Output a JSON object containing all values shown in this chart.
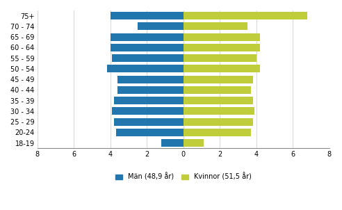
{
  "age_groups": [
    "18-19",
    "20-24",
    "25 - 29",
    "30 - 34",
    "35 - 39",
    "40 - 44",
    "45 - 49",
    "50 - 54",
    "55 - 59",
    "60 - 64",
    "65 - 69",
    "70 - 74",
    "75+"
  ],
  "men_values": [
    -1.2,
    -3.7,
    -3.8,
    -3.9,
    -3.8,
    -3.6,
    -3.6,
    -4.2,
    -3.9,
    -4.0,
    -4.0,
    -2.5,
    -4.0
  ],
  "women_values": [
    1.1,
    3.7,
    3.8,
    3.9,
    3.8,
    3.7,
    3.8,
    4.2,
    4.0,
    4.2,
    4.2,
    3.5,
    6.8
  ],
  "men_color": "#2176AE",
  "women_color": "#BFCD3A",
  "men_label": "Män (48,9 år)",
  "women_label": "Kvinnor (51,5 år)",
  "xlim": [
    -8,
    8
  ],
  "xticks": [
    -8,
    -6,
    -4,
    -2,
    0,
    2,
    4,
    6,
    8
  ],
  "xticklabels": [
    "8",
    "6",
    "4",
    "2",
    "0",
    "2",
    "4",
    "6",
    "8"
  ],
  "background_color": "#ffffff",
  "grid_color": "#d0d0d0",
  "bar_height": 0.72,
  "label_fontsize": 7,
  "tick_fontsize": 7
}
